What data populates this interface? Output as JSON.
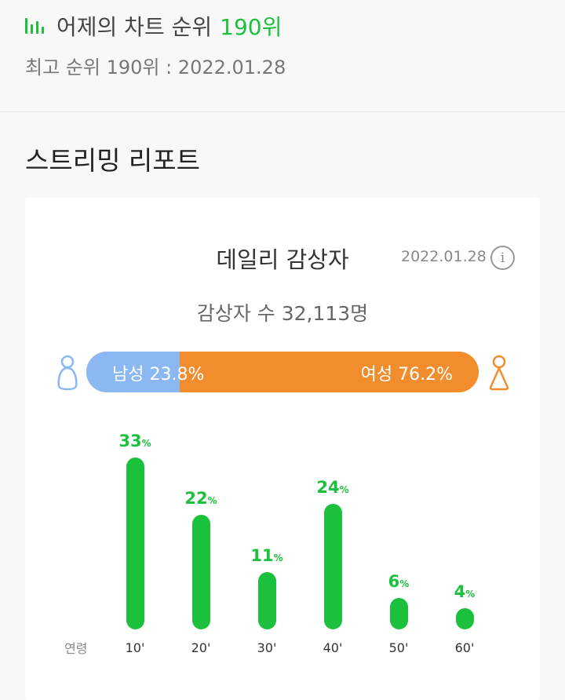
{
  "header": {
    "rank_prefix": "어제의 차트 순위",
    "rank_value": "190위",
    "best_rank": "최고 순위 190위 : 2022.01.28"
  },
  "report": {
    "section_title": "스트리밍 리포트",
    "card_title": "데일리 감상자",
    "date": "2022.01.28",
    "listeners": "감상자 수 32,113명"
  },
  "gender": {
    "male_label": "남성 23.8%",
    "female_label": "여성 76.2%",
    "male_pct": 23.8,
    "female_pct": 76.2
  },
  "chart_data": {
    "type": "bar",
    "xlabel": "연령",
    "categories": [
      "10'",
      "20'",
      "30'",
      "40'",
      "50'",
      "60'"
    ],
    "values": [
      33,
      22,
      11,
      24,
      6,
      4
    ],
    "unit": "%"
  },
  "colors": {
    "green": "#1bc03c",
    "male": "#8bb8f2",
    "female": "#f28d2e"
  }
}
